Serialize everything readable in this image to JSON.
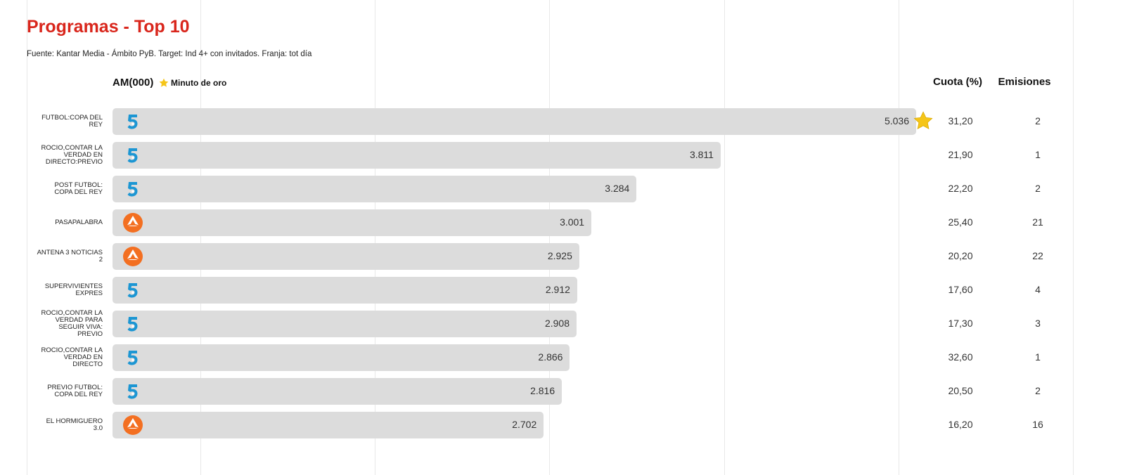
{
  "chart_data": {
    "type": "bar",
    "title": "Programas - Top 10",
    "subtitle": "Fuente: Kantar Media - Ámbito PyB. Target: Ind 4+ con invitados. Franja: tot día",
    "value_axis_label": "AM(000)",
    "legend_label": "Minuto de oro",
    "categories": [
      "FUTBOL:COPA DEL REY",
      "ROCIO,CONTAR LA VERDAD EN DIRECTO:PREVIO",
      "POST FUTBOL: COPA DEL REY",
      "PASAPALABRA",
      "ANTENA 3 NOTICIAS 2",
      "SUPERVIVIENTES EXPRES",
      "ROCIO,CONTAR LA VERDAD PARA SEGUIR VIVA: PREVIO",
      "ROCIO,CONTAR LA VERDAD EN DIRECTO",
      "PREVIO FUTBOL: COPA DEL REY",
      "EL HORMIGUERO 3.0"
    ],
    "values": [
      5036,
      3811,
      3284,
      3001,
      2925,
      2912,
      2908,
      2866,
      2816,
      2702
    ],
    "value_labels": [
      "5.036",
      "3.811",
      "3.284",
      "3.001",
      "2.925",
      "2.912",
      "2.908",
      "2.866",
      "2.816",
      "2.702"
    ],
    "color": "#dcdcdc",
    "share": {
      "name": "Cuota (%)",
      "values": [
        31.2,
        21.9,
        22.2,
        25.4,
        20.2,
        17.6,
        17.3,
        32.6,
        20.5,
        16.2
      ],
      "value_labels": [
        "31,20",
        "21,90",
        "22,20",
        "25,40",
        "20,20",
        "17,60",
        "17,30",
        "32,60",
        "20,50",
        "16,20"
      ]
    },
    "broadcasts": {
      "name": "Emisiones",
      "values": [
        2,
        1,
        2,
        21,
        22,
        4,
        3,
        1,
        2,
        16
      ]
    }
  }
}
